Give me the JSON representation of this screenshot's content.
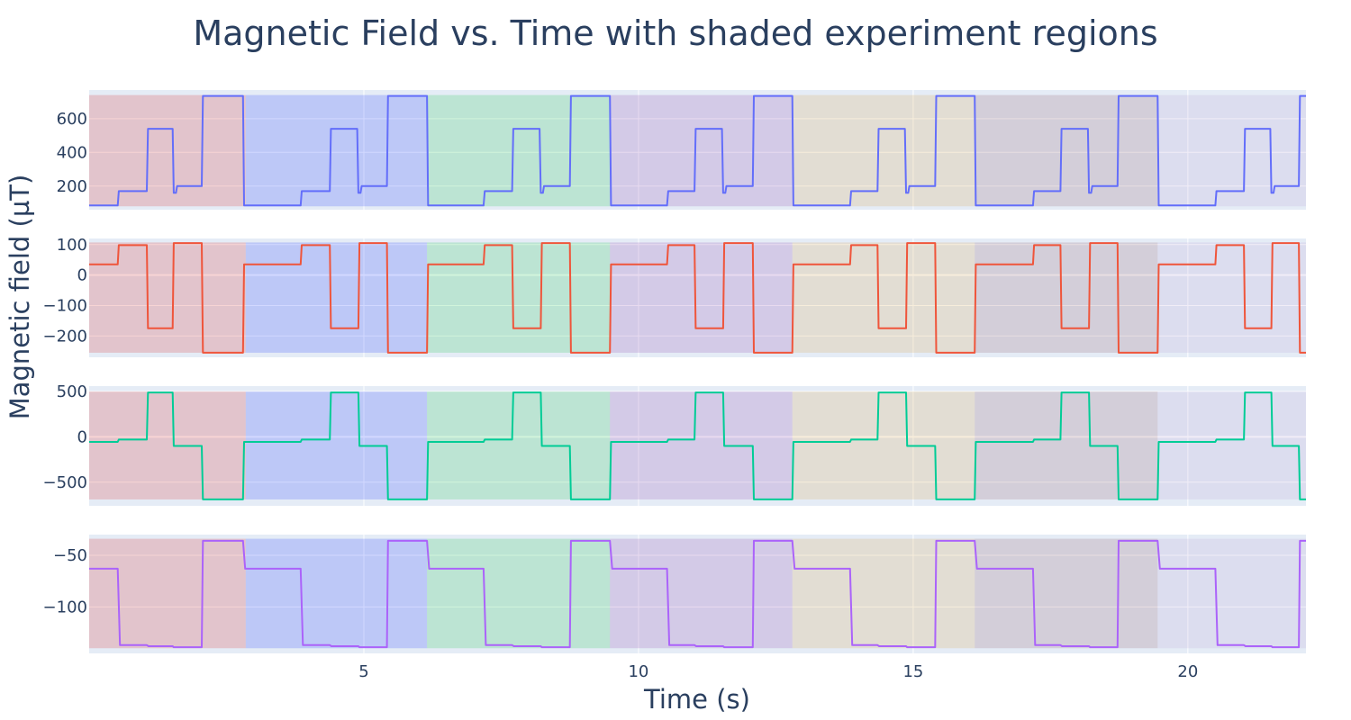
{
  "chart_data": {
    "type": "line",
    "title": "Magnetic Field vs. Time with shaded experiment regions",
    "xlabel": "Time (s)",
    "ylabel": "Magnetic field (µT)",
    "xlim": [
      0,
      22.15
    ],
    "xticks": [
      5,
      10,
      15,
      20
    ],
    "grid": true,
    "region_colors": [
      "#d62728",
      "#1f3cff",
      "#19c84b",
      "#8e44ad",
      "#d8a64a",
      "#8a5a6a",
      "#b8a6d6"
    ],
    "regions": [
      {
        "x0": 0.0,
        "x1": 2.85,
        "color": "#d62728",
        "opacity": 0.2
      },
      {
        "x0": 2.85,
        "x1": 6.15,
        "color": "#1f3cff",
        "opacity": 0.2
      },
      {
        "x0": 6.15,
        "x1": 9.48,
        "color": "#19c84b",
        "opacity": 0.2
      },
      {
        "x0": 9.48,
        "x1": 12.8,
        "color": "#8e44ad",
        "opacity": 0.2
      },
      {
        "x0": 12.8,
        "x1": 16.12,
        "color": "#d8a64a",
        "opacity": 0.2
      },
      {
        "x0": 16.12,
        "x1": 19.45,
        "color": "#8a5a6a",
        "opacity": 0.2
      },
      {
        "x0": 19.45,
        "x1": 22.15,
        "color": "#b8a6d6",
        "opacity": 0.2
      }
    ],
    "subplots": [
      {
        "ylim": [
          60,
          770
        ],
        "yticks": [
          "200",
          "400",
          "600"
        ],
        "ytick_values": [
          200,
          400,
          600
        ],
        "shade_range": [
          80,
          740
        ],
        "series": [
          {
            "color": "#636efa",
            "x": [
              0.0,
              0.52,
              0.54,
              1.05,
              1.07,
              1.52,
              1.54,
              1.58,
              1.6,
              2.05,
              2.07,
              2.8,
              2.82,
              3.85,
              3.87,
              4.38,
              4.4,
              4.88,
              4.9,
              4.94,
              4.96,
              5.42,
              5.44,
              6.15,
              6.17,
              7.18,
              7.2,
              7.7,
              7.72,
              8.2,
              8.22,
              8.26,
              8.28,
              8.75,
              8.77,
              9.48,
              9.5,
              10.52,
              10.54,
              11.02,
              11.04,
              11.52,
              11.54,
              11.58,
              11.6,
              12.08,
              12.1,
              12.8,
              12.82,
              13.85,
              13.87,
              14.35,
              14.37,
              14.85,
              14.87,
              14.91,
              14.93,
              15.4,
              15.42,
              16.12,
              16.14,
              17.18,
              17.2,
              17.68,
              17.7,
              18.18,
              18.2,
              18.24,
              18.26,
              18.72,
              18.74,
              19.45,
              19.47,
              20.5,
              20.52,
              21.02,
              21.04,
              21.5,
              21.52,
              21.56,
              21.58,
              22.02,
              22.04,
              22.15
            ],
            "y": [
              85,
              85,
              170,
              170,
              540,
              540,
              160,
              160,
              200,
              200,
              735,
              735,
              85,
              85,
              170,
              170,
              540,
              540,
              160,
              160,
              200,
              200,
              735,
              735,
              85,
              85,
              170,
              170,
              540,
              540,
              160,
              160,
              200,
              200,
              735,
              735,
              85,
              85,
              170,
              170,
              540,
              540,
              160,
              160,
              200,
              200,
              735,
              735,
              85,
              85,
              170,
              170,
              540,
              540,
              160,
              160,
              200,
              200,
              735,
              735,
              85,
              85,
              170,
              170,
              540,
              540,
              160,
              160,
              200,
              200,
              735,
              735,
              85,
              85,
              170,
              170,
              540,
              540,
              160,
              160,
              200,
              200,
              735,
              735
            ]
          }
        ]
      },
      {
        "ylim": [
          -270,
          120
        ],
        "yticks": [
          "100",
          "0",
          "−100",
          "−200"
        ],
        "ytick_values": [
          100,
          0,
          -100,
          -200
        ],
        "shade_range": [
          -255,
          107
        ],
        "series": [
          {
            "color": "#ef553b",
            "x": [
              0.0,
              0.52,
              0.54,
              1.05,
              1.07,
              1.52,
              1.54,
              2.05,
              2.07,
              2.8,
              2.82,
              3.85,
              3.87,
              4.38,
              4.4,
              4.9,
              4.92,
              5.42,
              5.44,
              6.15,
              6.17,
              7.18,
              7.2,
              7.7,
              7.72,
              8.22,
              8.24,
              8.75,
              8.77,
              9.48,
              9.5,
              10.52,
              10.54,
              11.02,
              11.04,
              11.54,
              11.56,
              12.08,
              12.1,
              12.8,
              12.82,
              13.85,
              13.87,
              14.35,
              14.37,
              14.87,
              14.89,
              15.4,
              15.42,
              16.12,
              16.14,
              17.18,
              17.2,
              17.68,
              17.7,
              18.2,
              18.22,
              18.72,
              18.74,
              19.45,
              19.47,
              20.5,
              20.52,
              21.02,
              21.04,
              21.52,
              21.54,
              22.02,
              22.04,
              22.15
            ],
            "y": [
              35,
              35,
              98,
              98,
              -175,
              -175,
              105,
              105,
              -255,
              -255,
              35,
              35,
              98,
              98,
              -175,
              -175,
              105,
              105,
              -255,
              -255,
              35,
              35,
              98,
              98,
              -175,
              -175,
              105,
              105,
              -255,
              -255,
              35,
              35,
              98,
              98,
              -175,
              -175,
              105,
              105,
              -255,
              -255,
              35,
              35,
              98,
              98,
              -175,
              -175,
              105,
              105,
              -255,
              -255,
              35,
              35,
              98,
              98,
              -175,
              -175,
              105,
              105,
              -255,
              -255,
              35,
              35,
              98,
              98,
              -175,
              -175,
              105,
              105,
              -255,
              -255
            ]
          }
        ]
      },
      {
        "ylim": [
          -760,
          560
        ],
        "yticks": [
          "500",
          "0",
          "−500"
        ],
        "ytick_values": [
          500,
          0,
          -500
        ],
        "shade_range": [
          -690,
          500
        ],
        "series": [
          {
            "color": "#00cc96",
            "x": [
              0.0,
              0.52,
              0.54,
              1.05,
              1.07,
              1.52,
              1.54,
              2.05,
              2.07,
              2.8,
              2.82,
              3.85,
              3.87,
              4.38,
              4.4,
              4.9,
              4.92,
              5.42,
              5.44,
              6.15,
              6.17,
              7.18,
              7.2,
              7.7,
              7.72,
              8.22,
              8.24,
              8.75,
              8.77,
              9.48,
              9.5,
              10.52,
              10.54,
              11.02,
              11.04,
              11.54,
              11.56,
              12.08,
              12.1,
              12.8,
              12.82,
              13.85,
              13.87,
              14.35,
              14.37,
              14.87,
              14.89,
              15.4,
              15.42,
              16.12,
              16.14,
              17.18,
              17.2,
              17.68,
              17.7,
              18.2,
              18.22,
              18.72,
              18.74,
              19.45,
              19.47,
              20.5,
              20.52,
              21.02,
              21.04,
              21.52,
              21.54,
              22.02,
              22.04,
              22.15
            ],
            "y": [
              -55,
              -55,
              -30,
              -30,
              490,
              490,
              -100,
              -100,
              -690,
              -690,
              -55,
              -55,
              -30,
              -30,
              490,
              490,
              -100,
              -100,
              -690,
              -690,
              -55,
              -55,
              -30,
              -30,
              490,
              490,
              -100,
              -100,
              -690,
              -690,
              -55,
              -55,
              -30,
              -30,
              490,
              490,
              -100,
              -100,
              -690,
              -690,
              -55,
              -55,
              -30,
              -30,
              490,
              490,
              -100,
              -100,
              -690,
              -690,
              -55,
              -55,
              -30,
              -30,
              490,
              490,
              -100,
              -100,
              -690,
              -690,
              -55,
              -55,
              -30,
              -30,
              490,
              490,
              -100,
              -100,
              -690,
              -690
            ]
          }
        ]
      },
      {
        "ylim": [
          -145,
          -30
        ],
        "yticks": [
          "−50",
          "−100"
        ],
        "ytick_values": [
          -50,
          -100
        ],
        "shade_range": [
          -140,
          -34
        ],
        "series": [
          {
            "color": "#ab63fa",
            "x": [
              0.0,
              0.52,
              0.56,
              1.05,
              1.08,
              1.52,
              1.54,
              2.05,
              2.07,
              2.8,
              2.84,
              3.85,
              3.89,
              4.38,
              4.41,
              4.9,
              4.92,
              5.42,
              5.44,
              6.15,
              6.19,
              7.18,
              7.22,
              7.7,
              7.73,
              8.22,
              8.24,
              8.75,
              8.77,
              9.48,
              9.52,
              10.52,
              10.56,
              11.02,
              11.05,
              11.54,
              11.56,
              12.08,
              12.1,
              12.8,
              12.84,
              13.85,
              13.89,
              14.35,
              14.38,
              14.87,
              14.89,
              15.4,
              15.42,
              16.12,
              16.16,
              17.18,
              17.22,
              17.68,
              17.71,
              18.2,
              18.22,
              18.72,
              18.74,
              19.45,
              19.49,
              20.5,
              20.54,
              21.02,
              21.05,
              21.52,
              21.54,
              22.02,
              22.04,
              22.15
            ],
            "y": [
              -63,
              -63,
              -137,
              -137,
              -138,
              -138,
              -139,
              -139,
              -36,
              -36,
              -63,
              -63,
              -137,
              -137,
              -138,
              -138,
              -139,
              -139,
              -36,
              -36,
              -63,
              -63,
              -137,
              -137,
              -138,
              -138,
              -139,
              -139,
              -36,
              -36,
              -63,
              -63,
              -137,
              -137,
              -138,
              -138,
              -139,
              -139,
              -36,
              -36,
              -63,
              -63,
              -137,
              -137,
              -138,
              -138,
              -139,
              -139,
              -36,
              -36,
              -63,
              -63,
              -137,
              -137,
              -138,
              -138,
              -139,
              -139,
              -36,
              -36,
              -63,
              -63,
              -137,
              -137,
              -138,
              -138,
              -139,
              -139,
              -36,
              -36
            ]
          }
        ]
      }
    ]
  }
}
